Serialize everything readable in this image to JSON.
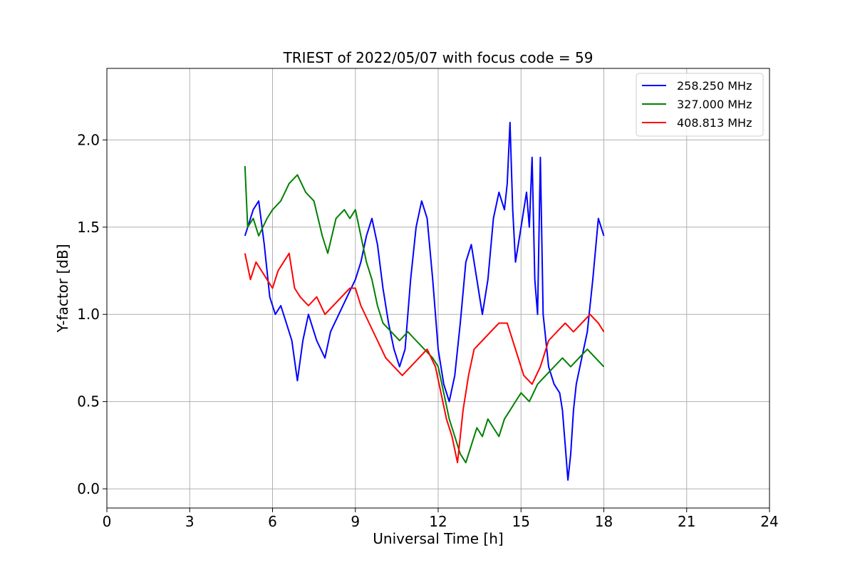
{
  "chart_data": {
    "type": "line",
    "title": "TRIEST of 2022/05/07 with focus code = 59",
    "xlabel": "Universal Time [h]",
    "ylabel": "Y-factor [dB]",
    "xlim": [
      0,
      24
    ],
    "ylim": [
      -0.11,
      2.41
    ],
    "xticks": [
      0,
      3,
      6,
      9,
      12,
      15,
      18,
      21,
      24
    ],
    "yticks": [
      0.0,
      0.5,
      1.0,
      1.5,
      2.0
    ],
    "xtick_labels": [
      "0",
      "3",
      "6",
      "9",
      "12",
      "15",
      "18",
      "21",
      "24"
    ],
    "ytick_labels": [
      "0.0",
      "0.5",
      "1.0",
      "1.5",
      "2.0"
    ],
    "grid": true,
    "legend_position": "top-right",
    "series": [
      {
        "name": "258.250 MHz",
        "color": "#0000ff",
        "x": [
          5.0,
          5.3,
          5.5,
          5.7,
          5.9,
          6.1,
          6.3,
          6.5,
          6.7,
          6.9,
          7.1,
          7.3,
          7.6,
          7.9,
          8.1,
          8.4,
          8.7,
          9.0,
          9.2,
          9.4,
          9.6,
          9.8,
          10.0,
          10.2,
          10.4,
          10.6,
          10.8,
          11.0,
          11.2,
          11.4,
          11.6,
          11.8,
          12.0,
          12.2,
          12.4,
          12.6,
          12.8,
          13.0,
          13.2,
          13.4,
          13.6,
          13.8,
          14.0,
          14.2,
          14.4,
          14.5,
          14.6,
          14.7,
          14.8,
          15.0,
          15.2,
          15.3,
          15.4,
          15.5,
          15.6,
          15.7,
          15.8,
          16.0,
          16.2,
          16.4,
          16.5,
          16.6,
          16.7,
          16.8,
          16.9,
          17.0,
          17.2,
          17.4,
          17.6,
          17.8,
          18.0
        ],
        "y": [
          1.45,
          1.6,
          1.65,
          1.4,
          1.1,
          1.0,
          1.05,
          0.95,
          0.85,
          0.62,
          0.85,
          1.0,
          0.85,
          0.75,
          0.9,
          1.0,
          1.1,
          1.2,
          1.3,
          1.45,
          1.55,
          1.4,
          1.15,
          0.95,
          0.8,
          0.7,
          0.8,
          1.2,
          1.5,
          1.65,
          1.55,
          1.2,
          0.8,
          0.6,
          0.5,
          0.65,
          0.95,
          1.3,
          1.4,
          1.2,
          1.0,
          1.2,
          1.55,
          1.7,
          1.6,
          1.75,
          2.1,
          1.6,
          1.3,
          1.5,
          1.7,
          1.5,
          1.9,
          1.2,
          1.0,
          1.9,
          1.0,
          0.7,
          0.6,
          0.55,
          0.45,
          0.25,
          0.05,
          0.2,
          0.45,
          0.6,
          0.75,
          0.9,
          1.2,
          1.55,
          1.45
        ]
      },
      {
        "name": "327.000 MHz",
        "color": "#008000",
        "x": [
          5.0,
          5.1,
          5.3,
          5.5,
          5.8,
          6.0,
          6.3,
          6.6,
          6.9,
          7.2,
          7.5,
          7.8,
          8.0,
          8.3,
          8.6,
          8.8,
          9.0,
          9.2,
          9.4,
          9.6,
          9.8,
          10.0,
          10.3,
          10.6,
          10.9,
          11.2,
          11.5,
          11.8,
          12.0,
          12.2,
          12.4,
          12.6,
          12.8,
          13.0,
          13.2,
          13.4,
          13.6,
          13.8,
          14.0,
          14.2,
          14.4,
          14.6,
          14.8,
          15.0,
          15.3,
          15.6,
          15.9,
          16.2,
          16.5,
          16.8,
          17.1,
          17.4,
          17.7,
          18.0
        ],
        "y": [
          1.85,
          1.5,
          1.55,
          1.45,
          1.55,
          1.6,
          1.65,
          1.75,
          1.8,
          1.7,
          1.65,
          1.45,
          1.35,
          1.55,
          1.6,
          1.55,
          1.6,
          1.45,
          1.3,
          1.2,
          1.05,
          0.95,
          0.9,
          0.85,
          0.9,
          0.85,
          0.8,
          0.75,
          0.7,
          0.55,
          0.4,
          0.3,
          0.2,
          0.15,
          0.25,
          0.35,
          0.3,
          0.4,
          0.35,
          0.3,
          0.4,
          0.45,
          0.5,
          0.55,
          0.5,
          0.6,
          0.65,
          0.7,
          0.75,
          0.7,
          0.75,
          0.8,
          0.75,
          0.7
        ]
      },
      {
        "name": "408.813 MHz",
        "color": "#ff0000",
        "x": [
          5.0,
          5.2,
          5.4,
          5.6,
          5.8,
          6.0,
          6.2,
          6.4,
          6.6,
          6.8,
          7.0,
          7.3,
          7.6,
          7.9,
          8.2,
          8.5,
          8.8,
          9.0,
          9.2,
          9.5,
          9.8,
          10.1,
          10.4,
          10.7,
          11.0,
          11.3,
          11.6,
          11.9,
          12.1,
          12.3,
          12.5,
          12.7,
          12.9,
          13.1,
          13.3,
          13.6,
          13.9,
          14.2,
          14.5,
          14.8,
          15.1,
          15.4,
          15.7,
          16.0,
          16.3,
          16.6,
          16.9,
          17.2,
          17.5,
          17.8,
          18.0
        ],
        "y": [
          1.35,
          1.2,
          1.3,
          1.25,
          1.2,
          1.15,
          1.25,
          1.3,
          1.35,
          1.15,
          1.1,
          1.05,
          1.1,
          1.0,
          1.05,
          1.1,
          1.15,
          1.15,
          1.05,
          0.95,
          0.85,
          0.75,
          0.7,
          0.65,
          0.7,
          0.75,
          0.8,
          0.7,
          0.55,
          0.4,
          0.3,
          0.15,
          0.45,
          0.65,
          0.8,
          0.85,
          0.9,
          0.95,
          0.95,
          0.8,
          0.65,
          0.6,
          0.7,
          0.85,
          0.9,
          0.95,
          0.9,
          0.95,
          1.0,
          0.95,
          0.9
        ]
      }
    ]
  }
}
